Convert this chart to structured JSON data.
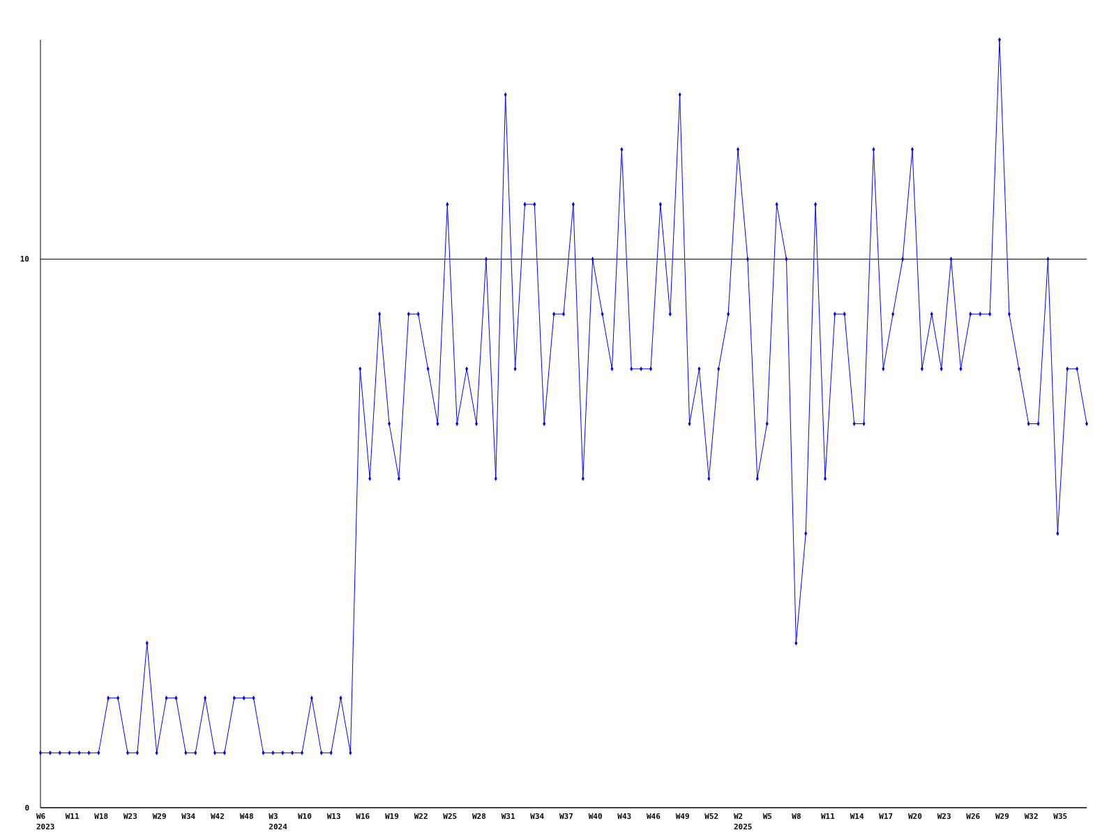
{
  "chart_data": {
    "type": "line",
    "categories": [
      "W6\n2023",
      null,
      null,
      "W11",
      null,
      null,
      "W18",
      null,
      null,
      "W23",
      null,
      null,
      "W29",
      null,
      null,
      "W34",
      null,
      null,
      "W42",
      null,
      null,
      "W48",
      null,
      null,
      "W3\n2024",
      null,
      null,
      "W10",
      null,
      null,
      "W13",
      null,
      null,
      "W16",
      null,
      null,
      "W19",
      null,
      null,
      "W22",
      null,
      null,
      "W25",
      null,
      null,
      "W28",
      null,
      null,
      "W31",
      null,
      null,
      "W34",
      null,
      null,
      "W37",
      null,
      null,
      "W40",
      null,
      null,
      "W43",
      null,
      null,
      "W46",
      null,
      null,
      "W49",
      null,
      null,
      "W52",
      null,
      null,
      "W2\n2025",
      null,
      null,
      "W5",
      null,
      null,
      "W8",
      null,
      null,
      "W11",
      null,
      null,
      "W14",
      null,
      null,
      "W17",
      null,
      null,
      "W20",
      null,
      null,
      "W23",
      null,
      null,
      "W26",
      null,
      null,
      "W29",
      null,
      null,
      "W32",
      null,
      null,
      "W35",
      null,
      null,
      null
    ],
    "series": [
      {
        "color": "#0000ff",
        "values": [
          1,
          1,
          1,
          1,
          1,
          1,
          1,
          2,
          2,
          1,
          1,
          3,
          1,
          2,
          2,
          1,
          1,
          2,
          1,
          1,
          2,
          2,
          2,
          1,
          1,
          1,
          1,
          1,
          2,
          1,
          1,
          2,
          1,
          8,
          6,
          9,
          7,
          6,
          9,
          9,
          8,
          7,
          11,
          7,
          8,
          7,
          10,
          6,
          13,
          8,
          11,
          11,
          7,
          9,
          9,
          11,
          6,
          10,
          9,
          8,
          12,
          8,
          8,
          8,
          11,
          9,
          13,
          7,
          8,
          6,
          8,
          9,
          12,
          10,
          6,
          7,
          11,
          10,
          3,
          5,
          11,
          6,
          9,
          9,
          7,
          7,
          12,
          8,
          9,
          10,
          12,
          8,
          9,
          8,
          10,
          8,
          9,
          9,
          9,
          14,
          9,
          8,
          7,
          7,
          10,
          5,
          8,
          8,
          7
        ]
      }
    ],
    "ylim": [
      0,
      14
    ],
    "yticks": [
      0,
      10
    ],
    "grid": "y",
    "marker": "diamond",
    "line_style": "solid"
  }
}
